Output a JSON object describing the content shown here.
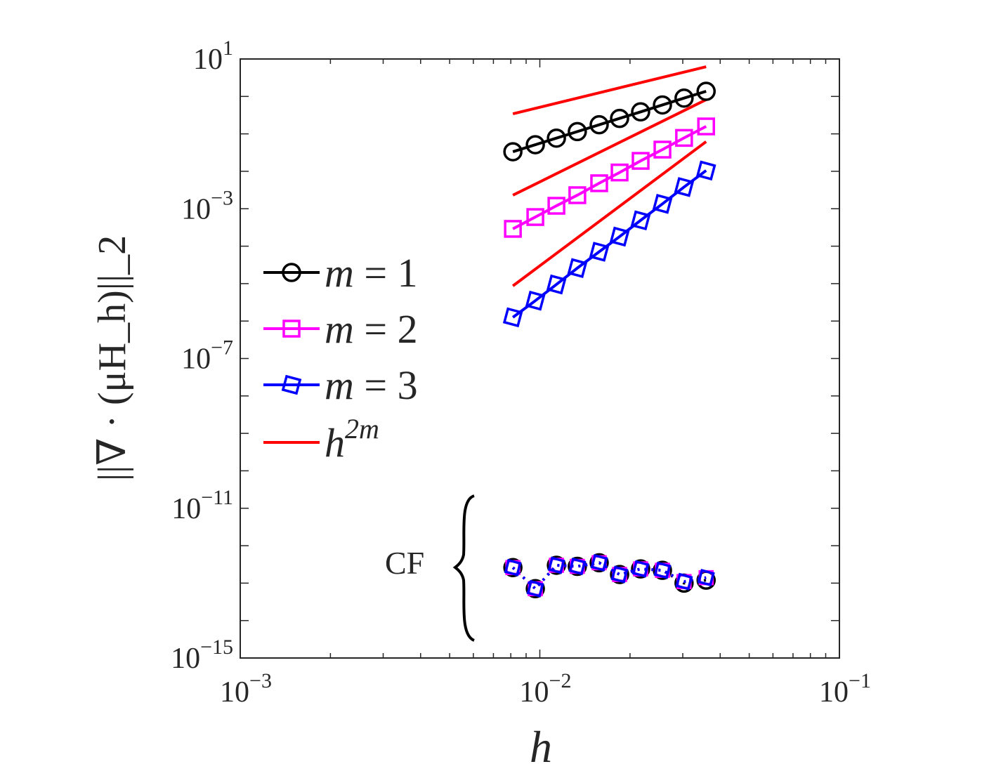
{
  "chart_data": {
    "type": "line",
    "xscale": "log",
    "yscale": "log",
    "xlim": [
      0.001,
      0.1
    ],
    "ylim": [
      1e-15,
      10
    ],
    "xlabel": "h",
    "ylabel": "||∇ · (μH_h)||_2",
    "x_ticks": [
      {
        "base": "10",
        "exp": "−3",
        "value": 0.001
      },
      {
        "base": "10",
        "exp": "−2",
        "value": 0.01
      },
      {
        "base": "10",
        "exp": "−1",
        "value": 0.1
      }
    ],
    "y_ticks": [
      {
        "base": "10",
        "exp": "1",
        "value": 10
      },
      {
        "base": "10",
        "exp": "−3",
        "value": 0.001
      },
      {
        "base": "10",
        "exp": "−7",
        "value": 1e-07
      },
      {
        "base": "10",
        "exp": "−11",
        "value": 1e-11
      },
      {
        "base": "10",
        "exp": "−15",
        "value": 1e-15
      }
    ],
    "grid": false,
    "legend_placement": "left",
    "x": [
      0.00813,
      0.00966,
      0.01136,
      0.01334,
      0.01578,
      0.01846,
      0.0217,
      0.02566,
      0.0303,
      0.0359
    ],
    "series": [
      {
        "name": "m = 1",
        "legend_var": "m",
        "legend_eq": " = 1",
        "color": "#000000",
        "marker": "circle",
        "values": [
          0.0333,
          0.0513,
          0.0769,
          0.115,
          0.175,
          0.259,
          0.387,
          0.592,
          0.902,
          1.37
        ],
        "cf_values": [
          2.6e-13,
          7.1e-14,
          3e-13,
          2.8e-13,
          3.5e-13,
          1.7e-13,
          2.4e-13,
          2.2e-13,
          1e-13,
          1.2e-13
        ]
      },
      {
        "name": "m = 2",
        "legend_var": "m",
        "legend_eq": " = 2",
        "color": "#ff00ff",
        "marker": "square",
        "values": [
          0.00029,
          0.0006,
          0.0012,
          0.0023,
          0.0048,
          0.0093,
          0.019,
          0.038,
          0.078,
          0.158
        ],
        "cf_values": [
          2.6e-13,
          7.1e-14,
          3e-13,
          2.8e-13,
          3.5e-13,
          1.7e-13,
          2.4e-13,
          2.2e-13,
          1.1e-13,
          1.4e-13
        ]
      },
      {
        "name": "m = 3",
        "legend_var": "m",
        "legend_eq": " = 3",
        "color": "#0000ff",
        "marker": "diamond",
        "values": [
          1.26e-06,
          3.5e-06,
          9.5e-06,
          2.6e-05,
          7.1e-05,
          0.00018,
          0.00049,
          0.00135,
          0.0038,
          0.0105
        ],
        "cf_values": [
          2.6e-13,
          7.1e-14,
          3e-13,
          2.8e-13,
          3.5e-13,
          1.7e-13,
          2.4e-13,
          2.2e-13,
          1.1e-13,
          1.4e-13
        ]
      }
    ],
    "reference_lines": {
      "name": "h^2m",
      "legend_base": "h",
      "legend_exp": "2m",
      "color": "#ff0000",
      "x": [
        0.00813,
        0.0359
      ],
      "lines": [
        [
          0.344,
          6.2
        ],
        [
          0.0023,
          0.82
        ],
        [
          8.7e-06,
          0.062
        ]
      ]
    },
    "annotations": [
      {
        "text": "CF"
      }
    ]
  }
}
